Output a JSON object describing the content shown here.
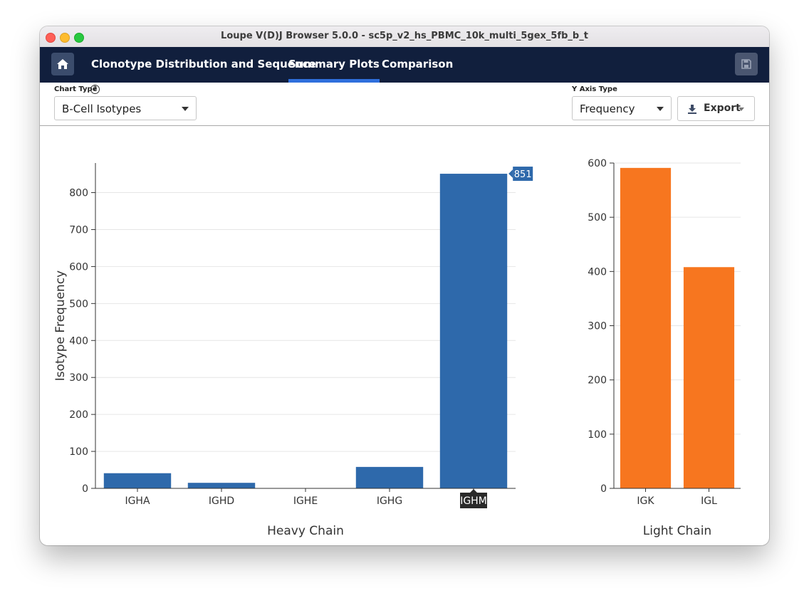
{
  "window": {
    "title": "Loupe V(D)J Browser 5.0.0 - sc5p_v2_hs_PBMC_10k_multi_5gex_5fb_b_t"
  },
  "nav": {
    "home_icon": "home-icon",
    "tabs": [
      {
        "label": "Clonotype Distribution and Sequence",
        "active": false
      },
      {
        "label": "Summary Plots",
        "active": true
      },
      {
        "label": "Comparison",
        "active": false
      }
    ],
    "save_icon": "save-icon"
  },
  "toolbar": {
    "chart_type_label": "Chart Type",
    "chart_type_value": "B-Cell Isotypes",
    "y_axis_type_label": "Y Axis Type",
    "y_axis_type_value": "Frequency",
    "export_label": "Export"
  },
  "colors": {
    "heavy": "#2e69ab",
    "light": "#f7761f",
    "nav_bg": "#111f3d",
    "active_tab": "#2f6fdc"
  },
  "chart_data": [
    {
      "type": "bar",
      "xlabel": "Heavy Chain",
      "ylabel": "Isotype Frequency",
      "categories": [
        "IGHA",
        "IGHD",
        "IGHE",
        "IGHG",
        "IGHM"
      ],
      "values": [
        41,
        15,
        0,
        58,
        851
      ],
      "yticks": [
        0,
        100,
        200,
        300,
        400,
        500,
        600,
        700,
        800
      ],
      "ylim": [
        0,
        880
      ],
      "grid": true,
      "hover": {
        "category": "IGHM",
        "value_label": "851"
      }
    },
    {
      "type": "bar",
      "xlabel": "Light Chain",
      "categories": [
        "IGK",
        "IGL"
      ],
      "values": [
        591,
        408
      ],
      "yticks": [
        0,
        100,
        200,
        300,
        400,
        500,
        600
      ],
      "ylim": [
        0,
        600
      ],
      "grid": true
    }
  ]
}
